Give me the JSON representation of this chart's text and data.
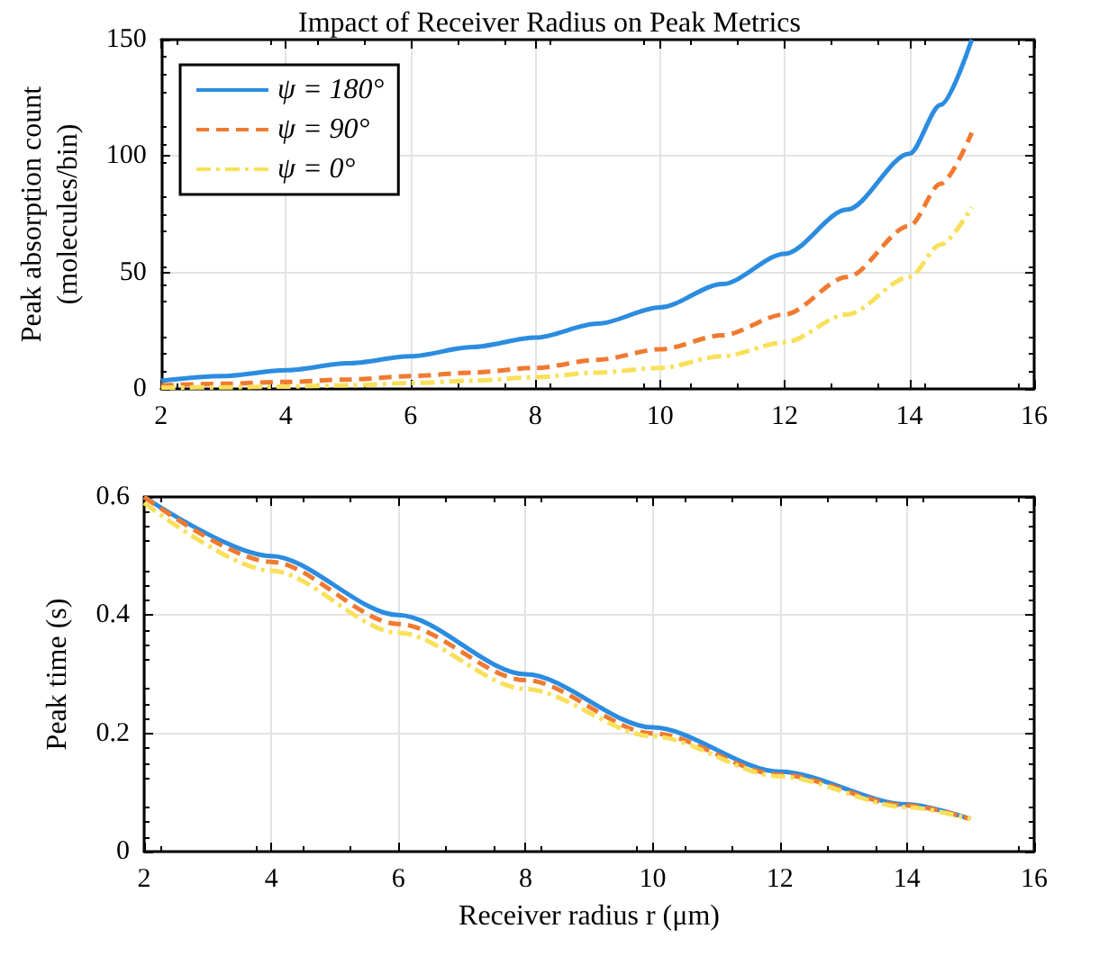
{
  "chart_data": [
    {
      "type": "line",
      "title": "Impact of Receiver Radius on Peak Metrics",
      "ylabel": "Peak absorption count\n(molecules/bin)",
      "xlim": [
        2,
        16
      ],
      "xticks": [
        2,
        4,
        6,
        8,
        10,
        12,
        14,
        16
      ],
      "ylim": [
        0,
        150
      ],
      "yticks": [
        0,
        50,
        100,
        150
      ],
      "grid": true,
      "legend": "top left",
      "marker": "none",
      "x": [
        2,
        3,
        4,
        5,
        6,
        7,
        8,
        9,
        10,
        11,
        12,
        13,
        14,
        14.5,
        15
      ],
      "series": [
        {
          "name": "ψ = 180°",
          "color": "#2b8ce0",
          "line_style": "solid",
          "values": [
            3.5,
            5.5,
            8,
            11,
            14,
            18,
            22,
            28,
            35,
            45,
            58,
            77,
            101,
            122,
            150
          ]
        },
        {
          "name": "ψ = 90°",
          "color": "#f07a30",
          "line_style": "dashed",
          "values": [
            1.5,
            2.2,
            3,
            4,
            5.5,
            7,
            9,
            12.5,
            17,
            23,
            32,
            48,
            70,
            88,
            110
          ]
        },
        {
          "name": "ψ = 0°",
          "color": "#f9e05a",
          "line_style": "dashdot",
          "values": [
            0.5,
            0.7,
            1,
            1.5,
            2.5,
            3.5,
            5,
            7,
            9,
            14,
            20,
            32,
            48,
            62,
            78
          ]
        }
      ]
    },
    {
      "type": "line",
      "xlabel": "Receiver radius r (μm)",
      "ylabel": "Peak time (s)",
      "xlim": [
        2,
        16
      ],
      "xticks": [
        2,
        4,
        6,
        8,
        10,
        12,
        14,
        16
      ],
      "ylim": [
        0,
        0.6
      ],
      "yticks": [
        0,
        0.2,
        0.4,
        0.6
      ],
      "grid": true,
      "marker": "none",
      "x": [
        2,
        4,
        6,
        8,
        10,
        12,
        14,
        15
      ],
      "series": [
        {
          "color": "#2b8ce0",
          "line_style": "solid",
          "values": [
            0.6,
            0.5,
            0.4,
            0.3,
            0.21,
            0.135,
            0.08,
            0.055
          ]
        },
        {
          "color": "#f07a30",
          "line_style": "dashed",
          "values": [
            0.6,
            0.49,
            0.385,
            0.29,
            0.2,
            0.13,
            0.078,
            0.055
          ]
        },
        {
          "color": "#f9e05a",
          "line_style": "dashdot",
          "values": [
            0.59,
            0.475,
            0.37,
            0.275,
            0.195,
            0.127,
            0.075,
            0.055
          ]
        }
      ]
    }
  ]
}
